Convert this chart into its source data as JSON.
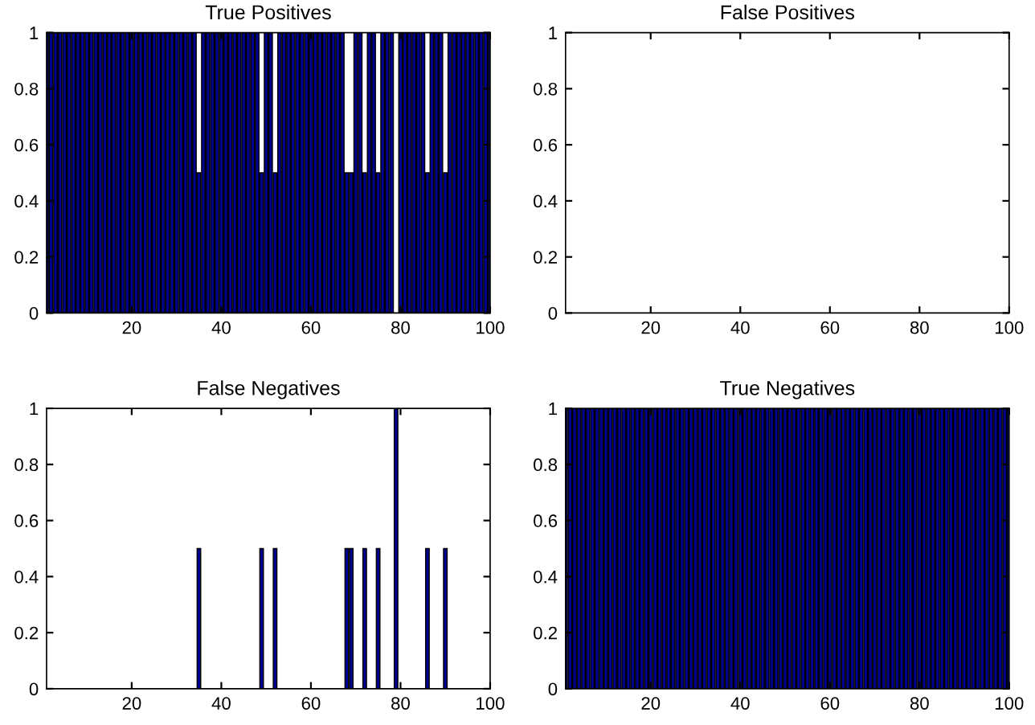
{
  "chart_data": [
    {
      "type": "bar",
      "title": "True Positives",
      "x": [
        1,
        2,
        3,
        4,
        5,
        6,
        7,
        8,
        9,
        10,
        11,
        12,
        13,
        14,
        15,
        16,
        17,
        18,
        19,
        20,
        21,
        22,
        23,
        24,
        25,
        26,
        27,
        28,
        29,
        30,
        31,
        32,
        33,
        34,
        35,
        36,
        37,
        38,
        39,
        40,
        41,
        42,
        43,
        44,
        45,
        46,
        47,
        48,
        49,
        50,
        51,
        52,
        53,
        54,
        55,
        56,
        57,
        58,
        59,
        60,
        61,
        62,
        63,
        64,
        65,
        66,
        67,
        68,
        69,
        70,
        71,
        72,
        73,
        74,
        75,
        76,
        77,
        78,
        79,
        80,
        81,
        82,
        83,
        84,
        85,
        86,
        87,
        88,
        89,
        90,
        91,
        92,
        93,
        94,
        95,
        96,
        97,
        98,
        99,
        100
      ],
      "values": [
        1,
        1,
        1,
        1,
        1,
        1,
        1,
        1,
        1,
        1,
        1,
        1,
        1,
        1,
        1,
        1,
        1,
        1,
        1,
        1,
        1,
        1,
        1,
        1,
        1,
        1,
        1,
        1,
        1,
        1,
        1,
        1,
        1,
        1,
        0.5,
        1,
        1,
        1,
        1,
        1,
        1,
        1,
        1,
        1,
        1,
        1,
        1,
        1,
        0.5,
        1,
        1,
        0.5,
        1,
        1,
        1,
        1,
        1,
        1,
        1,
        1,
        1,
        1,
        1,
        1,
        1,
        1,
        1,
        0.5,
        0.5,
        1,
        1,
        0.5,
        1,
        1,
        0.5,
        1,
        1,
        1,
        0,
        1,
        1,
        1,
        1,
        1,
        1,
        0.5,
        1,
        1,
        1,
        0.5,
        1,
        1,
        1,
        1,
        1,
        1,
        1,
        1,
        1,
        1
      ],
      "color": "#000090",
      "xlim": [
        1,
        100
      ],
      "xticks": [
        20,
        40,
        60,
        80,
        100
      ],
      "ylim": [
        0,
        1
      ],
      "yticks": [
        0,
        0.2,
        0.4,
        0.6,
        0.8,
        1
      ],
      "grid": false
    },
    {
      "type": "bar",
      "title": "False Positives",
      "x": [
        1,
        2,
        3,
        4,
        5,
        6,
        7,
        8,
        9,
        10,
        11,
        12,
        13,
        14,
        15,
        16,
        17,
        18,
        19,
        20,
        21,
        22,
        23,
        24,
        25,
        26,
        27,
        28,
        29,
        30,
        31,
        32,
        33,
        34,
        35,
        36,
        37,
        38,
        39,
        40,
        41,
        42,
        43,
        44,
        45,
        46,
        47,
        48,
        49,
        50,
        51,
        52,
        53,
        54,
        55,
        56,
        57,
        58,
        59,
        60,
        61,
        62,
        63,
        64,
        65,
        66,
        67,
        68,
        69,
        70,
        71,
        72,
        73,
        74,
        75,
        76,
        77,
        78,
        79,
        80,
        81,
        82,
        83,
        84,
        85,
        86,
        87,
        88,
        89,
        90,
        91,
        92,
        93,
        94,
        95,
        96,
        97,
        98,
        99,
        100
      ],
      "values": [
        0,
        0,
        0,
        0,
        0,
        0,
        0,
        0,
        0,
        0,
        0,
        0,
        0,
        0,
        0,
        0,
        0,
        0,
        0,
        0,
        0,
        0,
        0,
        0,
        0,
        0,
        0,
        0,
        0,
        0,
        0,
        0,
        0,
        0,
        0,
        0,
        0,
        0,
        0,
        0,
        0,
        0,
        0,
        0,
        0,
        0,
        0,
        0,
        0,
        0,
        0,
        0,
        0,
        0,
        0,
        0,
        0,
        0,
        0,
        0,
        0,
        0,
        0,
        0,
        0,
        0,
        0,
        0,
        0,
        0,
        0,
        0,
        0,
        0,
        0,
        0,
        0,
        0,
        0,
        0,
        0,
        0,
        0,
        0,
        0,
        0,
        0,
        0,
        0,
        0,
        0,
        0,
        0,
        0,
        0,
        0,
        0,
        0,
        0,
        0
      ],
      "color": "#000090",
      "xlim": [
        1,
        100
      ],
      "xticks": [
        20,
        40,
        60,
        80,
        100
      ],
      "ylim": [
        0,
        1
      ],
      "yticks": [
        0,
        0.2,
        0.4,
        0.6,
        0.8,
        1
      ],
      "grid": false
    },
    {
      "type": "bar",
      "title": "False Negatives",
      "x": [
        1,
        2,
        3,
        4,
        5,
        6,
        7,
        8,
        9,
        10,
        11,
        12,
        13,
        14,
        15,
        16,
        17,
        18,
        19,
        20,
        21,
        22,
        23,
        24,
        25,
        26,
        27,
        28,
        29,
        30,
        31,
        32,
        33,
        34,
        35,
        36,
        37,
        38,
        39,
        40,
        41,
        42,
        43,
        44,
        45,
        46,
        47,
        48,
        49,
        50,
        51,
        52,
        53,
        54,
        55,
        56,
        57,
        58,
        59,
        60,
        61,
        62,
        63,
        64,
        65,
        66,
        67,
        68,
        69,
        70,
        71,
        72,
        73,
        74,
        75,
        76,
        77,
        78,
        79,
        80,
        81,
        82,
        83,
        84,
        85,
        86,
        87,
        88,
        89,
        90,
        91,
        92,
        93,
        94,
        95,
        96,
        97,
        98,
        99,
        100
      ],
      "values": [
        0,
        0,
        0,
        0,
        0,
        0,
        0,
        0,
        0,
        0,
        0,
        0,
        0,
        0,
        0,
        0,
        0,
        0,
        0,
        0,
        0,
        0,
        0,
        0,
        0,
        0,
        0,
        0,
        0,
        0,
        0,
        0,
        0,
        0,
        0.5,
        0,
        0,
        0,
        0,
        0,
        0,
        0,
        0,
        0,
        0,
        0,
        0,
        0,
        0.5,
        0,
        0,
        0.5,
        0,
        0,
        0,
        0,
        0,
        0,
        0,
        0,
        0,
        0,
        0,
        0,
        0,
        0,
        0,
        0.5,
        0.5,
        0,
        0,
        0.5,
        0,
        0,
        0.5,
        0,
        0,
        0,
        1,
        0,
        0,
        0,
        0,
        0,
        0,
        0.5,
        0,
        0,
        0,
        0.5,
        0,
        0,
        0,
        0,
        0,
        0,
        0,
        0,
        0,
        0
      ],
      "color": "#000090",
      "xlim": [
        1,
        100
      ],
      "xticks": [
        20,
        40,
        60,
        80,
        100
      ],
      "ylim": [
        0,
        1
      ],
      "yticks": [
        0,
        0.2,
        0.4,
        0.6,
        0.8,
        1
      ],
      "grid": false
    },
    {
      "type": "bar",
      "title": "True Negatives",
      "x": [
        1,
        2,
        3,
        4,
        5,
        6,
        7,
        8,
        9,
        10,
        11,
        12,
        13,
        14,
        15,
        16,
        17,
        18,
        19,
        20,
        21,
        22,
        23,
        24,
        25,
        26,
        27,
        28,
        29,
        30,
        31,
        32,
        33,
        34,
        35,
        36,
        37,
        38,
        39,
        40,
        41,
        42,
        43,
        44,
        45,
        46,
        47,
        48,
        49,
        50,
        51,
        52,
        53,
        54,
        55,
        56,
        57,
        58,
        59,
        60,
        61,
        62,
        63,
        64,
        65,
        66,
        67,
        68,
        69,
        70,
        71,
        72,
        73,
        74,
        75,
        76,
        77,
        78,
        79,
        80,
        81,
        82,
        83,
        84,
        85,
        86,
        87,
        88,
        89,
        90,
        91,
        92,
        93,
        94,
        95,
        96,
        97,
        98,
        99,
        100
      ],
      "values": [
        1,
        1,
        1,
        1,
        1,
        1,
        1,
        1,
        1,
        1,
        1,
        1,
        1,
        1,
        1,
        1,
        1,
        1,
        1,
        1,
        1,
        1,
        1,
        1,
        1,
        1,
        1,
        1,
        1,
        1,
        1,
        1,
        1,
        1,
        1,
        1,
        1,
        1,
        1,
        1,
        1,
        1,
        1,
        1,
        1,
        1,
        1,
        1,
        1,
        1,
        1,
        1,
        1,
        1,
        1,
        1,
        1,
        1,
        1,
        1,
        1,
        1,
        1,
        1,
        1,
        1,
        1,
        1,
        1,
        1,
        1,
        1,
        1,
        1,
        1,
        1,
        1,
        1,
        1,
        1,
        1,
        1,
        1,
        1,
        1,
        1,
        1,
        1,
        1,
        1,
        1,
        1,
        1,
        1,
        1,
        1,
        1,
        1,
        1,
        1
      ],
      "color": "#000090",
      "xlim": [
        1,
        100
      ],
      "xticks": [
        20,
        40,
        60,
        80,
        100
      ],
      "ylim": [
        0,
        1
      ],
      "yticks": [
        0,
        0.2,
        0.4,
        0.6,
        0.8,
        1
      ],
      "grid": false
    }
  ]
}
